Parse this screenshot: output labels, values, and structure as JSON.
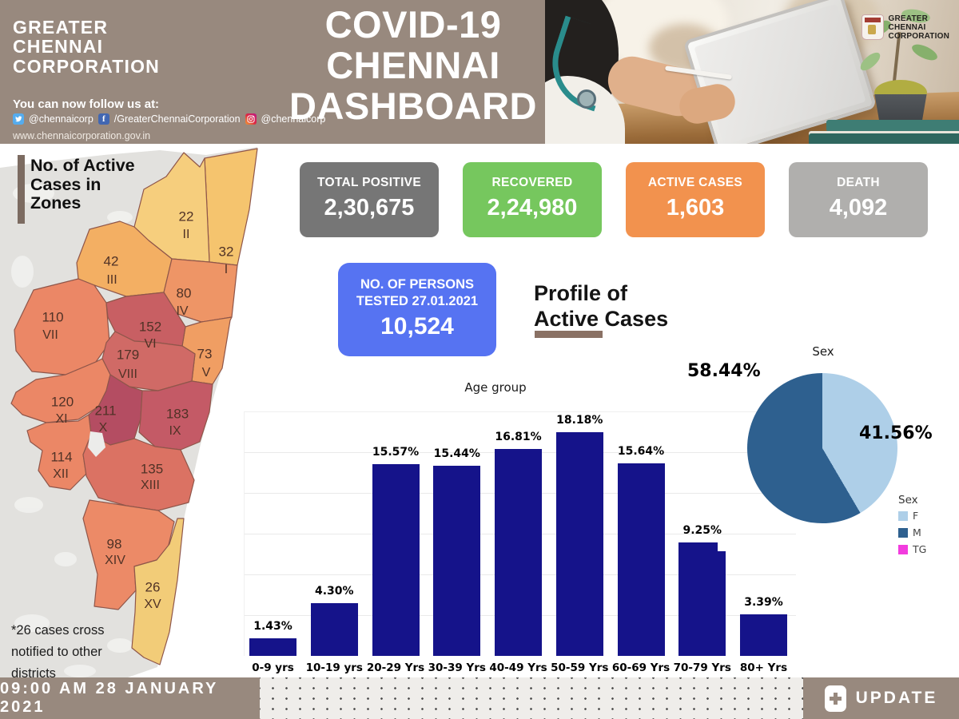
{
  "header": {
    "brand_lines": [
      "GREATER",
      "CHENNAI",
      "CORPORATION"
    ],
    "follow_text": "You can now follow us at:",
    "social": {
      "twitter": "@chennaicorp",
      "facebook": "/GreaterChennaiCorporation",
      "instagram": "@chennaicorp"
    },
    "website": "www.chennaicorporation.gov.in",
    "title_lines": [
      "COVID-19",
      "CHENNAI",
      "DASHBOARD"
    ],
    "photo_logo_lines": [
      "GREATER",
      "CHENNAI",
      "CORPORATION"
    ],
    "background_color": "#98897E"
  },
  "map": {
    "heading_lines": [
      "No. of Active",
      "Cases in",
      "Zones"
    ],
    "footnote_lines": [
      "*26 cases cross",
      "notified to other",
      "districts"
    ],
    "zones": [
      {
        "zone": "I",
        "cases": "32",
        "color": "#F5C46E"
      },
      {
        "zone": "II",
        "cases": "22",
        "color": "#F6CE7D"
      },
      {
        "zone": "III",
        "cases": "42",
        "color": "#F3AF63"
      },
      {
        "zone": "IV",
        "cases": "80",
        "color": "#EE9566"
      },
      {
        "zone": "V",
        "cases": "73",
        "color": "#F09E63"
      },
      {
        "zone": "VI",
        "cases": "152",
        "color": "#C85F63"
      },
      {
        "zone": "VII",
        "cases": "110",
        "color": "#EB8766"
      },
      {
        "zone": "VIII",
        "cases": "179",
        "color": "#D06A66"
      },
      {
        "zone": "IX",
        "cases": "183",
        "color": "#C45A66"
      },
      {
        "zone": "X",
        "cases": "211",
        "color": "#B44D62"
      },
      {
        "zone": "XI",
        "cases": "120",
        "color": "#EB8766"
      },
      {
        "zone": "XII",
        "cases": "114",
        "color": "#EB8766"
      },
      {
        "zone": "XIII",
        "cases": "135",
        "color": "#DB7263"
      },
      {
        "zone": "XIV",
        "cases": "98",
        "color": "#EC8A67"
      },
      {
        "zone": "XV",
        "cases": "26",
        "color": "#F2CC78"
      }
    ]
  },
  "stats": [
    {
      "label": "TOTAL POSITIVE",
      "value": "2,30,675",
      "color": "#767676"
    },
    {
      "label": "RECOVERED",
      "value": "2,24,980",
      "color": "#76C75E"
    },
    {
      "label": "ACTIVE CASES",
      "value": "1,603",
      "color": "#F2924E"
    },
    {
      "label": "DEATH",
      "value": "4,092",
      "color": "#B0AFAD"
    }
  ],
  "tested": {
    "label_lines": [
      "NO. OF PERSONS",
      "TESTED 27.01.2021"
    ],
    "value": "10,524",
    "color": "#5673F2"
  },
  "profile_heading_lines": [
    "Profile of",
    "Active Cases"
  ],
  "chart_data": [
    {
      "type": "bar",
      "title": "Age group",
      "categories": [
        "0-9 yrs",
        "10-19 yrs",
        "20-29 Yrs",
        "30-39 Yrs",
        "40-49 Yrs",
        "50-59 Yrs",
        "60-69 Yrs",
        "70-79 Yrs",
        "80+ Yrs"
      ],
      "values": [
        1.43,
        4.3,
        15.57,
        15.44,
        16.81,
        18.18,
        15.64,
        9.25,
        3.39
      ],
      "value_labels": [
        "1.43%",
        "4.30%",
        "15.57%",
        "15.44%",
        "16.81%",
        "18.18%",
        "15.64%",
        "9.25%",
        "3.39%"
      ],
      "bar_color": "#15138A",
      "xlabel": "",
      "ylabel": "",
      "ylim": [
        0,
        20
      ],
      "grid": true,
      "notch_bar_index": 7
    },
    {
      "type": "pie",
      "title": "Sex",
      "legend_title": "Sex",
      "legend_position": "bottom-right",
      "slices": [
        {
          "name": "F",
          "value": 41.56,
          "label": "41.56%",
          "color": "#AECFE8"
        },
        {
          "name": "M",
          "value": 58.44,
          "label": "58.44%",
          "color": "#2E608F"
        },
        {
          "name": "TG",
          "value": 0,
          "label": "",
          "color": "#F23CDE"
        }
      ]
    }
  ],
  "footer": {
    "timestamp": "09:00 AM 28 JANUARY 2021",
    "update_label": "UPDATE"
  }
}
